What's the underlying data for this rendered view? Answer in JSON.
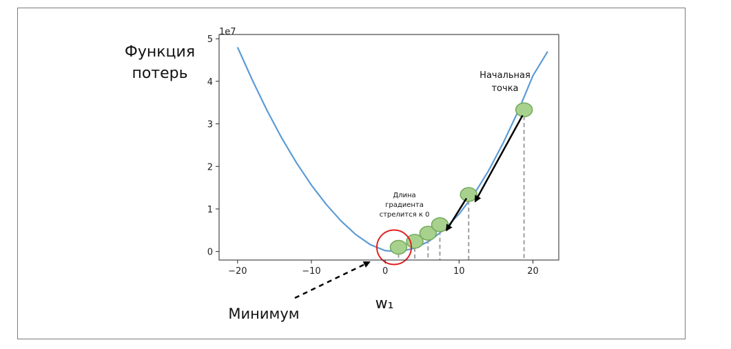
{
  "chart_data": {
    "type": "line",
    "title": "",
    "xlabel": "w₁",
    "ylabel_lines": [
      "Функция",
      "потерь"
    ],
    "y_offset_label": "1e7",
    "xlim": [
      -22.5,
      23.5
    ],
    "ylim": [
      -0.2,
      5.1
    ],
    "x_ticks": [
      -20,
      -10,
      0,
      10,
      20
    ],
    "x_tick_labels": [
      "−20",
      "−10",
      "0",
      "10",
      "20"
    ],
    "y_ticks": [
      0,
      1,
      2,
      3,
      4,
      5
    ],
    "y_tick_labels": [
      "0",
      "1",
      "2",
      "3",
      "4",
      "5"
    ],
    "grid": false,
    "curve": {
      "color": "#5b9bd5",
      "x": [
        -20,
        -18,
        -16,
        -14,
        -12,
        -10,
        -8,
        -6,
        -4,
        -2,
        0,
        2,
        4,
        6,
        8,
        10,
        12,
        14,
        16,
        18,
        20,
        22
      ],
      "y": [
        4.8,
        4.03,
        3.31,
        2.66,
        2.08,
        1.56,
        1.11,
        0.72,
        0.4,
        0.16,
        0.02,
        0.0,
        0.08,
        0.25,
        0.52,
        0.88,
        1.34,
        1.9,
        2.56,
        3.3,
        4.13,
        4.7
      ]
    },
    "points": {
      "fill": "#a9d18e",
      "stroke": "#70a95a",
      "x": [
        1.8,
        4.0,
        5.8,
        7.4,
        11.3,
        18.8
      ],
      "y": [
        0.1,
        0.24,
        0.43,
        0.63,
        1.34,
        3.33
      ]
    },
    "gradient_arrows": [
      {
        "from": [
          18.6,
          3.2
        ],
        "to": [
          12.2,
          1.18
        ]
      },
      {
        "from": [
          11.0,
          1.25
        ],
        "to": [
          8.3,
          0.5
        ]
      }
    ],
    "minimum_circle": {
      "x": 1.2,
      "y": 0.1,
      "color": "#e02020"
    },
    "annotations": {
      "start_point": [
        "Начальная",
        "точка"
      ],
      "gradient_length": [
        "Длина",
        "градиента",
        "стрелится к 0"
      ],
      "minimum": "Минимум"
    }
  }
}
